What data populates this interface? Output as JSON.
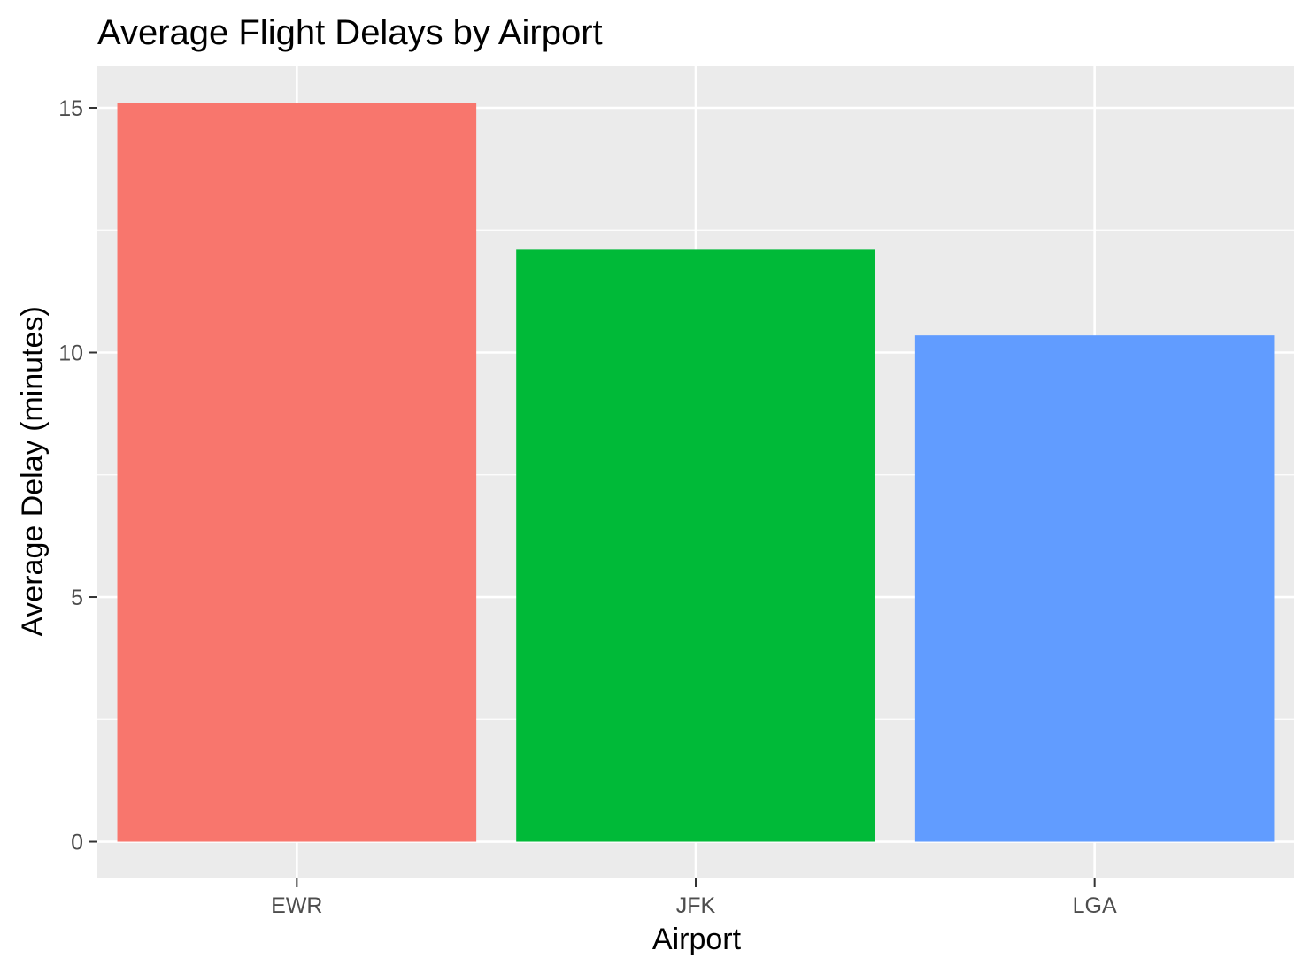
{
  "chart_data": {
    "type": "bar",
    "title": "Average Flight Delays by Airport",
    "xlabel": "Airport",
    "ylabel": "Average Delay (minutes)",
    "categories": [
      "EWR",
      "JFK",
      "LGA"
    ],
    "values": [
      15.1,
      12.1,
      10.35
    ],
    "colors": [
      "#F8766D",
      "#00BA38",
      "#619CFF"
    ],
    "ylim": [
      -0.75,
      15.85
    ],
    "yticks": [
      0,
      5,
      10,
      15
    ],
    "yticks_labels": [
      "0",
      "5",
      "10",
      "15"
    ],
    "y_minor_ticks": [
      2.5,
      7.5,
      12.5
    ],
    "grid": true,
    "legend": "none",
    "panel_background": "#EBEBEB",
    "gridline_color": "#FFFFFF",
    "tick_color": "#333333",
    "tick_label_color": "#4D4D4D",
    "title_color": "#000000"
  }
}
